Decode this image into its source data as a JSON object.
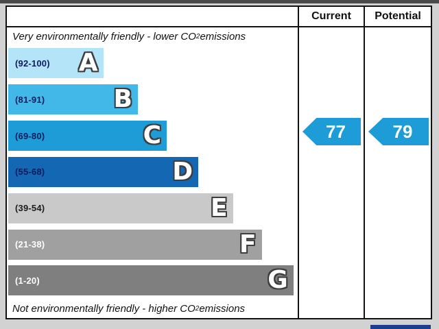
{
  "header": {
    "current_label": "Current",
    "potential_label": "Potential"
  },
  "captions": {
    "top_pre": "Very environmentally friendly - lower CO",
    "top_sub": "2",
    "top_post": " emissions",
    "bottom_pre": "Not environmentally friendly - higher CO",
    "bottom_sub": "2",
    "bottom_post": " emissions"
  },
  "chart_data": {
    "type": "bar",
    "bands": [
      {
        "letter": "A",
        "range_label": "(92-100)",
        "range": [
          92,
          100
        ],
        "color": "#b3e4f7",
        "label_color": "#0d1b5e",
        "width_pct": 33
      },
      {
        "letter": "B",
        "range_label": "(81-91)",
        "range": [
          81,
          91
        ],
        "color": "#42b8e8",
        "label_color": "#0d1b5e",
        "width_pct": 45
      },
      {
        "letter": "C",
        "range_label": "(69-80)",
        "range": [
          69,
          80
        ],
        "color": "#1d9cd8",
        "label_color": "#0d1b5e",
        "width_pct": 55
      },
      {
        "letter": "D",
        "range_label": "(55-68)",
        "range": [
          55,
          68
        ],
        "color": "#1467b2",
        "label_color": "#0d1b5e",
        "width_pct": 66
      },
      {
        "letter": "E",
        "range_label": "(39-54)",
        "range": [
          39,
          54
        ],
        "color": "#c9c9c9",
        "label_color": "#1c1c1c",
        "width_pct": 78
      },
      {
        "letter": "F",
        "range_label": "(21-38)",
        "range": [
          21,
          38
        ],
        "color": "#a0a0a0",
        "label_color": "#ffffff",
        "width_pct": 88
      },
      {
        "letter": "G",
        "range_label": "(1-20)",
        "range": [
          1,
          20
        ],
        "color": "#7f7f7f",
        "label_color": "#ffffff",
        "width_pct": 99
      }
    ],
    "current": {
      "value": "77",
      "band": "C",
      "arrow_color": "#1d9cd8"
    },
    "potential": {
      "value": "79",
      "band": "C",
      "arrow_color": "#1d9cd8"
    }
  },
  "partial_footer": {
    "eu_box_color": "#1d3d8f"
  }
}
